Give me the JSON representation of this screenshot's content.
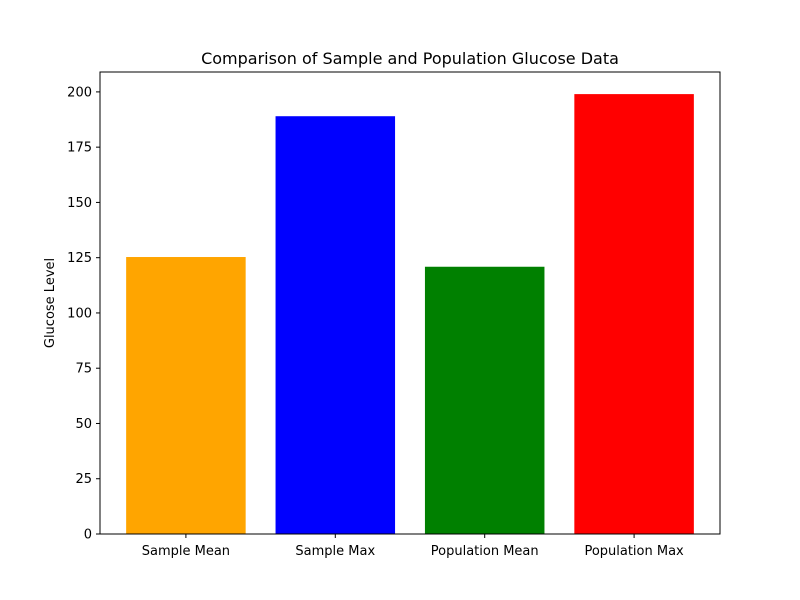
{
  "chart_data": {
    "type": "bar",
    "title": "Comparison of Sample and Population Glucose Data",
    "xlabel": "",
    "ylabel": "Glucose Level",
    "categories": [
      "Sample Mean",
      "Sample Max",
      "Population Mean",
      "Population Max"
    ],
    "values": [
      125.3,
      189,
      120.9,
      199
    ],
    "colors": [
      "#ffa500",
      "#0000ff",
      "#008000",
      "#ff0000"
    ],
    "ylim": [
      0,
      209
    ],
    "yticks": [
      0,
      25,
      50,
      75,
      100,
      125,
      150,
      175,
      200
    ],
    "grid": false,
    "legend": "none"
  }
}
